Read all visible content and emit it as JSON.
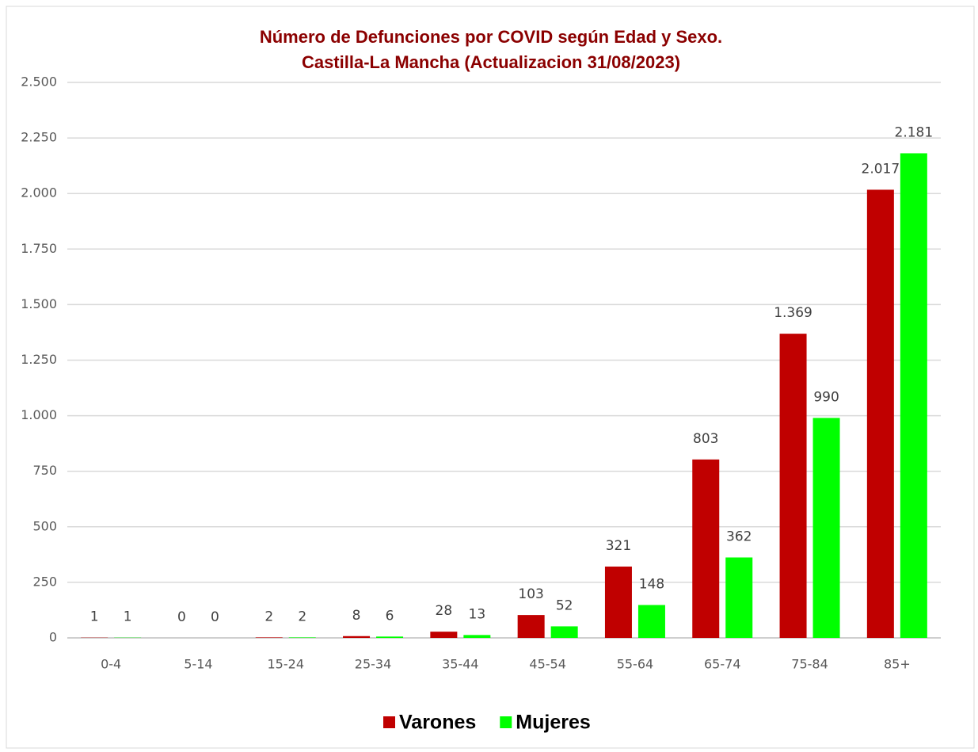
{
  "chart_data": {
    "type": "bar",
    "title": [
      "Número de Defunciones por COVID según Edad y Sexo.",
      "Castilla-La Mancha (Actualizacion 31/08/2023)"
    ],
    "categories": [
      "0-4",
      "5-14",
      "15-24",
      "25-34",
      "35-44",
      "45-54",
      "55-64",
      "65-74",
      "75-84",
      "85+"
    ],
    "series": [
      {
        "name": "Varones",
        "color": "#c00000",
        "values": [
          1,
          0,
          2,
          8,
          28,
          103,
          321,
          803,
          1369,
          2017
        ],
        "value_labels": [
          "1",
          "0",
          "2",
          "8",
          "28",
          "103",
          "321",
          "803",
          "1.369",
          "2.017"
        ]
      },
      {
        "name": "Mujeres",
        "color": "#00ff00",
        "values": [
          1,
          0,
          2,
          6,
          13,
          52,
          148,
          362,
          990,
          2181
        ],
        "value_labels": [
          "1",
          "0",
          "2",
          "6",
          "13",
          "52",
          "148",
          "362",
          "990",
          "2.181"
        ]
      }
    ],
    "ylim": [
      0,
      2500
    ],
    "yticks": [
      0,
      250,
      500,
      750,
      {
        "value": 1000,
        "label": "1.000"
      },
      {
        "value": 1250,
        "label": "1.250"
      },
      {
        "value": 1500,
        "label": "1.500"
      },
      {
        "value": 1750,
        "label": "1.750"
      },
      {
        "value": 2000,
        "label": "2.000"
      },
      {
        "value": 2250,
        "label": "2.250"
      },
      {
        "value": 2500,
        "label": "2.500"
      }
    ],
    "grid": true,
    "legend": "bottom"
  }
}
